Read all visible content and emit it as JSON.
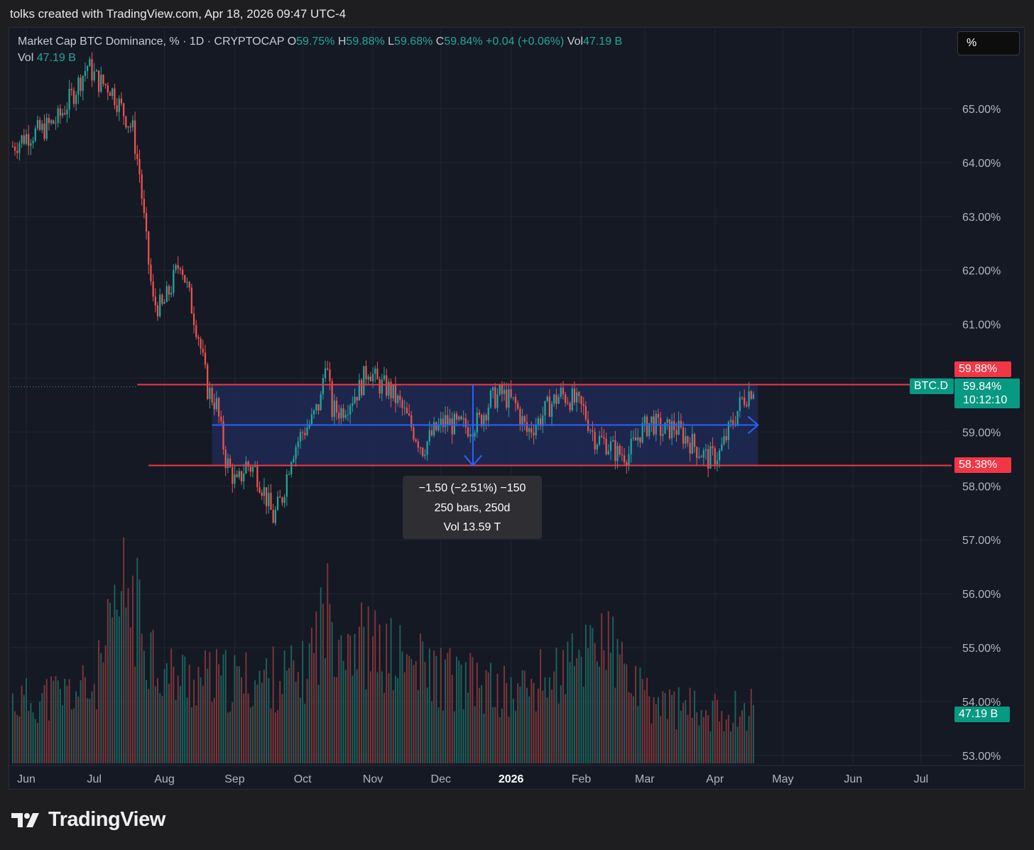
{
  "header": {
    "text": "tolks created with TradingView.com, Apr 18, 2026 09:47 UTC-4"
  },
  "legend": {
    "title": "Market Cap BTC Dominance, % · 1D · CRYPTOCAP",
    "o_label": "O",
    "o_value": "59.75%",
    "h_label": "H",
    "h_value": "59.88%",
    "l_label": "L",
    "l_value": "59.68%",
    "c_label": "C",
    "c_value": "59.84%",
    "change": "+0.04 (+0.06%)",
    "vol_label": "Vol",
    "vol_value": "47.19 B",
    "vol2_label": "Vol",
    "vol2_value": "47.19 B"
  },
  "toolbar": {
    "percent_label": "%"
  },
  "price_tags": {
    "high": "59.88%",
    "symbol": "BTC.D",
    "last": "59.84%",
    "countdown": "10:12:10",
    "low": "58.38%",
    "volume": "47.19 B"
  },
  "measure_tooltip": {
    "line1": "−1.50 (−2.51%) −150",
    "line2": "250 bars, 250d",
    "line3": "Vol 13.59 T"
  },
  "footer": {
    "brand": "TradingView"
  },
  "colors": {
    "up": "#26a69a",
    "down": "#ef5350",
    "range_fill": "#1e2a55",
    "arrow": "#2962ff",
    "level": "#f23645",
    "grid": "#222633"
  },
  "chart_data": {
    "type": "candlestick",
    "symbol": "BTC.D",
    "timeframe": "1D",
    "y_axis": {
      "labels": [
        "65.00%",
        "64.00%",
        "63.00%",
        "62.00%",
        "61.00%",
        "59.00%",
        "58.00%",
        "57.00%",
        "56.00%",
        "55.00%",
        "54.00%",
        "53.00%"
      ],
      "ticks": [
        65,
        64,
        63,
        62,
        61,
        59,
        58,
        57,
        56,
        55,
        54,
        53
      ],
      "range": [
        52.85,
        66.0
      ]
    },
    "x_axis": {
      "labels": [
        "Jun",
        "Jul",
        "Aug",
        "Sep",
        "Oct",
        "Nov",
        "Dec",
        "2026",
        "Feb",
        "Mar",
        "Apr",
        "May",
        "Jun",
        "Jul"
      ],
      "dates": [
        "2025-06-01",
        "2025-07-01",
        "2025-08-01",
        "2025-09-01",
        "2025-10-01",
        "2025-11-01",
        "2025-12-01",
        "2026-01-01",
        "2026-02-01",
        "2026-03-01",
        "2026-04-01",
        "2026-05-01",
        "2026-06-01",
        "2026-07-01"
      ]
    },
    "series_close": [
      [
        "2025-05-26",
        64.3
      ],
      [
        "2025-06-01",
        64.5
      ],
      [
        "2025-06-08",
        64.6
      ],
      [
        "2025-06-15",
        64.8
      ],
      [
        "2025-06-22",
        65.3
      ],
      [
        "2025-06-28",
        65.8
      ],
      [
        "2025-07-03",
        65.5
      ],
      [
        "2025-07-08",
        65.4
      ],
      [
        "2025-07-13",
        65.0
      ],
      [
        "2025-07-18",
        64.6
      ],
      [
        "2025-07-21",
        63.8
      ],
      [
        "2025-07-24",
        62.5
      ],
      [
        "2025-07-27",
        61.4
      ],
      [
        "2025-07-31",
        61.3
      ],
      [
        "2025-08-04",
        61.7
      ],
      [
        "2025-08-08",
        62.2
      ],
      [
        "2025-08-12",
        61.5
      ],
      [
        "2025-08-16",
        60.8
      ],
      [
        "2025-08-20",
        59.8
      ],
      [
        "2025-08-24",
        59.5
      ],
      [
        "2025-08-28",
        58.5
      ],
      [
        "2025-09-02",
        58.0
      ],
      [
        "2025-09-06",
        58.4
      ],
      [
        "2025-09-10",
        58.3
      ],
      [
        "2025-09-14",
        57.9
      ],
      [
        "2025-09-18",
        57.4
      ],
      [
        "2025-09-22",
        57.8
      ],
      [
        "2025-09-26",
        58.6
      ],
      [
        "2025-10-01",
        59.0
      ],
      [
        "2025-10-05",
        59.2
      ],
      [
        "2025-10-09",
        59.6
      ],
      [
        "2025-10-11",
        60.4
      ],
      [
        "2025-10-14",
        59.4
      ],
      [
        "2025-10-18",
        59.4
      ],
      [
        "2025-10-22",
        59.6
      ],
      [
        "2025-10-26",
        59.8
      ],
      [
        "2025-10-30",
        60.2
      ],
      [
        "2025-11-03",
        59.9
      ],
      [
        "2025-11-08",
        59.8
      ],
      [
        "2025-11-13",
        59.5
      ],
      [
        "2025-11-18",
        59.1
      ],
      [
        "2025-11-23",
        58.7
      ],
      [
        "2025-11-28",
        59.0
      ],
      [
        "2025-12-03",
        59.2
      ],
      [
        "2025-12-08",
        59.1
      ],
      [
        "2025-12-13",
        59.1
      ],
      [
        "2025-12-18",
        59.2
      ],
      [
        "2025-12-23",
        59.6
      ],
      [
        "2025-12-28",
        59.7
      ],
      [
        "2026-01-03",
        59.5
      ],
      [
        "2026-01-08",
        59.0
      ],
      [
        "2026-01-13",
        59.2
      ],
      [
        "2026-01-18",
        59.5
      ],
      [
        "2026-01-23",
        59.7
      ],
      [
        "2026-01-28",
        59.6
      ],
      [
        "2026-02-02",
        59.4
      ],
      [
        "2026-02-07",
        58.9
      ],
      [
        "2026-02-12",
        58.8
      ],
      [
        "2026-02-17",
        58.6
      ],
      [
        "2026-02-22",
        58.6
      ],
      [
        "2026-02-27",
        59.0
      ],
      [
        "2026-03-04",
        59.2
      ],
      [
        "2026-03-09",
        59.0
      ],
      [
        "2026-03-14",
        59.1
      ],
      [
        "2026-03-19",
        58.9
      ],
      [
        "2026-03-24",
        58.7
      ],
      [
        "2026-03-29",
        58.5
      ],
      [
        "2026-04-03",
        58.6
      ],
      [
        "2026-04-08",
        59.1
      ],
      [
        "2026-04-13",
        59.6
      ],
      [
        "2026-04-18",
        59.84
      ]
    ],
    "volume": [
      [
        "2025-06-01",
        1.0
      ],
      [
        "2025-07-01",
        1.2
      ],
      [
        "2025-07-15",
        2.8
      ],
      [
        "2025-08-01",
        1.4
      ],
      [
        "2025-09-01",
        1.3
      ],
      [
        "2025-10-01",
        1.4
      ],
      [
        "2025-10-11",
        2.4
      ],
      [
        "2025-11-01",
        1.8
      ],
      [
        "2025-12-01",
        1.4
      ],
      [
        "2026-01-01",
        1.1
      ],
      [
        "2026-02-01",
        1.6
      ],
      [
        "2026-02-06",
        2.2
      ],
      [
        "2026-03-01",
        1.0
      ],
      [
        "2026-04-01",
        0.8
      ],
      [
        "2026-04-18",
        0.9
      ]
    ],
    "annotations": {
      "range_box": {
        "from": "2025-08-22",
        "to": "2026-04-20",
        "top": 59.88,
        "bottom": 58.38
      },
      "horizontal_lines": [
        59.88,
        58.38
      ],
      "midline_arrow": 59.13
    }
  }
}
